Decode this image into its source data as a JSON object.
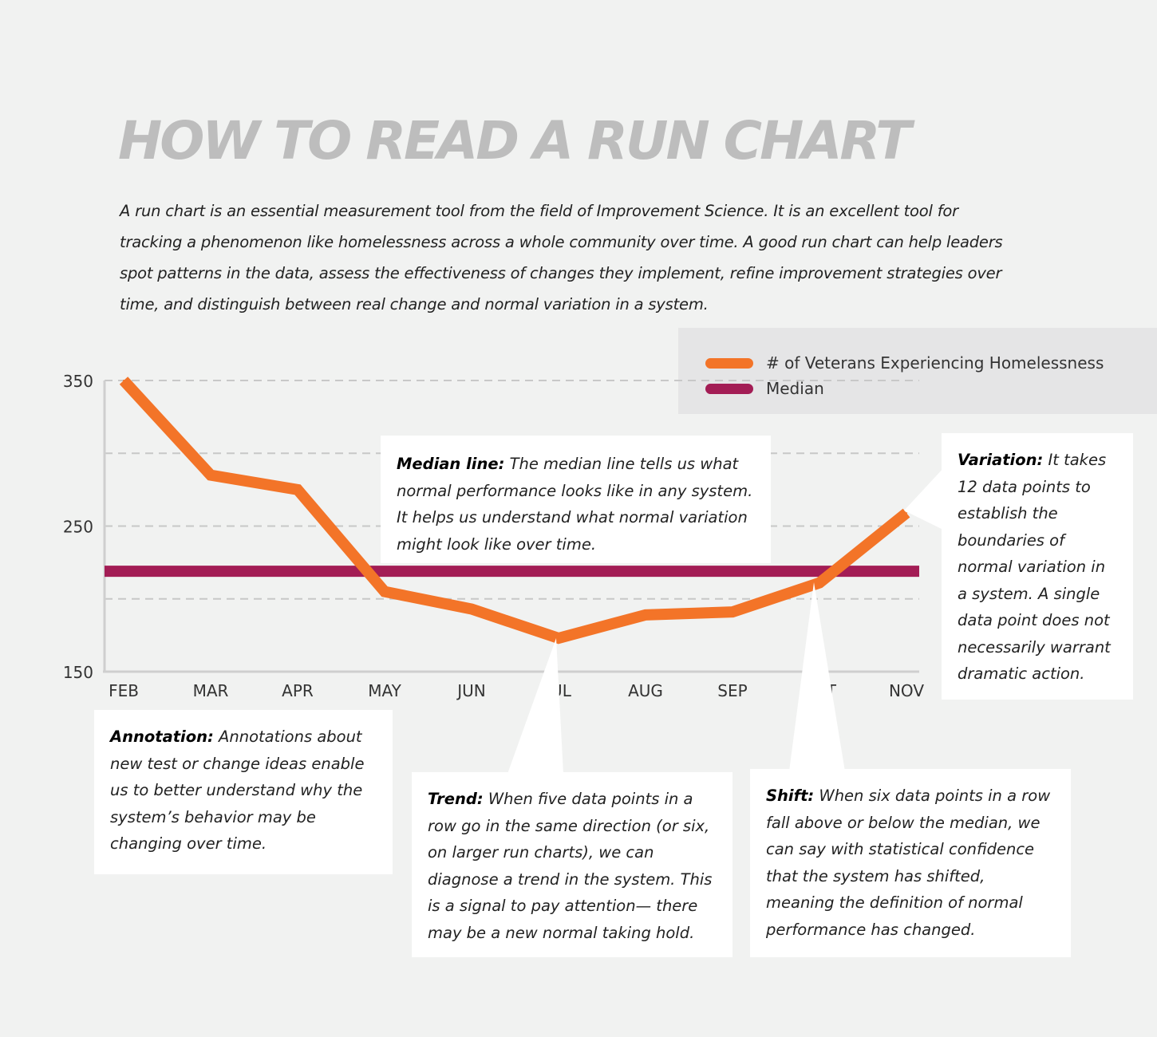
{
  "title": "HOW TO READ A RUN CHART",
  "intro": "A run chart is an essential measurement tool from the field of Improvement Science. It is an excellent tool for tracking a phenomenon like homelessness across a whole community over time. A good run chart can help leaders spot patterns in the data, assess the effectiveness of changes they implement, refine improvement strategies over time, and distinguish between real change and normal variation in a system.",
  "chart_data": {
    "type": "line",
    "categories": [
      "FEB",
      "MAR",
      "APR",
      "MAY",
      "JUN",
      "JUL",
      "AUG",
      "SEP",
      "OCT",
      "NOV"
    ],
    "series": [
      {
        "name": "# of Veterans Experiencing Homelessness",
        "values": [
          350,
          285,
          275,
          205,
          193,
          173,
          189,
          191,
          211,
          259
        ],
        "color": "#f37428"
      },
      {
        "name": "Median",
        "values": [
          219,
          219,
          219,
          219,
          219,
          219,
          219,
          219,
          219,
          219
        ],
        "color": "#a31d55"
      }
    ],
    "yticks": [
      150,
      250,
      350
    ],
    "ylim": [
      150,
      350
    ],
    "grid": true,
    "legend_position": "top-right"
  },
  "callouts": {
    "median": {
      "heading": "Median line:",
      "text": " The median line tells us what normal performance looks like in any system. It helps us understand what normal variation might look like over time."
    },
    "variation": {
      "heading": "Variation:",
      "text": " It takes 12 data points to establish the boundaries of normal variation in a system. A single data point does not necessarily warrant dramatic action."
    },
    "annotation": {
      "heading": "Annotation:",
      "text": " Annotations about new test or change ideas enable us to better understand why the system’s behavior may be changing over time."
    },
    "trend": {
      "heading": "Trend:",
      "text": " When five data points in a row go in the same direction (or six, on larger run charts), we can diagnose a trend in the system. This is a signal to pay attention— there may be a new normal taking hold."
    },
    "shift": {
      "heading": "Shift:",
      "text": " When six data points in a row fall above or below the median, we can say with statistical confidence that the system has shifted, meaning the definition of normal performance has changed."
    }
  }
}
